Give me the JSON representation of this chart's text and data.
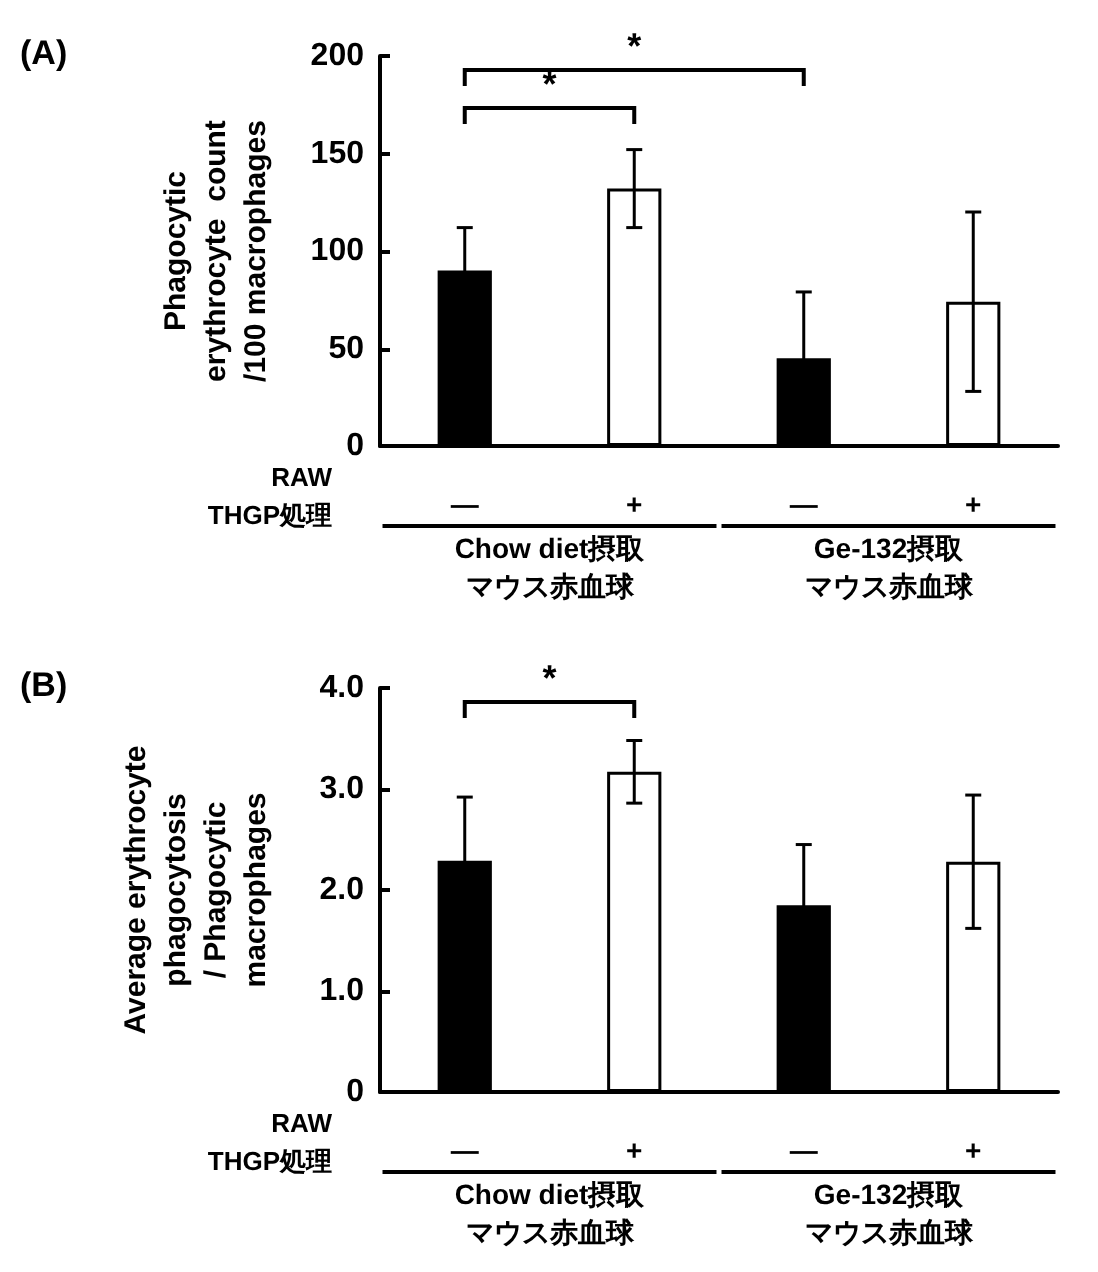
{
  "chart_data": [
    {
      "type": "bar",
      "ylabel": "Phagocytic\nerythrocyte  count\n/100 macrophages",
      "xlabel": "RAW\nTHGP処理",
      "categories": [
        "—",
        "+",
        "—",
        "+"
      ],
      "values": [
        90,
        132,
        45,
        74
      ],
      "errors": [
        22,
        20,
        34,
        46
      ],
      "colors": [
        "#000000",
        "#ffffff",
        "#000000",
        "#ffffff"
      ],
      "ylim": [
        0,
        200
      ],
      "yticks": [
        0,
        50,
        100,
        150,
        200
      ],
      "annotations": [
        "(A)",
        "*",
        "*",
        "Chow diet摂取",
        "マウス赤血球",
        "Ge-132摂取",
        "マウス赤血球"
      ]
    },
    {
      "type": "bar",
      "ylabel": "Average erythrocyte\nphagocytosis\n/ Phagocytic\nmacrophages",
      "xlabel": "RAW\nTHGP処理",
      "categories": [
        "—",
        "+",
        "—",
        "+"
      ],
      "values": [
        2.29,
        3.17,
        1.85,
        2.28
      ],
      "errors": [
        0.63,
        0.31,
        0.6,
        0.66
      ],
      "colors": [
        "#000000",
        "#ffffff",
        "#000000",
        "#ffffff"
      ],
      "ylim": [
        0,
        4
      ],
      "yticks": [
        0,
        {
          "value": 1,
          "label": "1.0"
        },
        {
          "value": 2,
          "label": "2.0"
        },
        {
          "value": 3,
          "label": "3.0"
        },
        {
          "value": 4,
          "label": "4.0"
        }
      ],
      "annotations": [
        "(B)",
        "*",
        "Chow diet摂取",
        "マウス赤血球",
        "Ge-132摂取",
        "マウス赤血球"
      ]
    }
  ]
}
